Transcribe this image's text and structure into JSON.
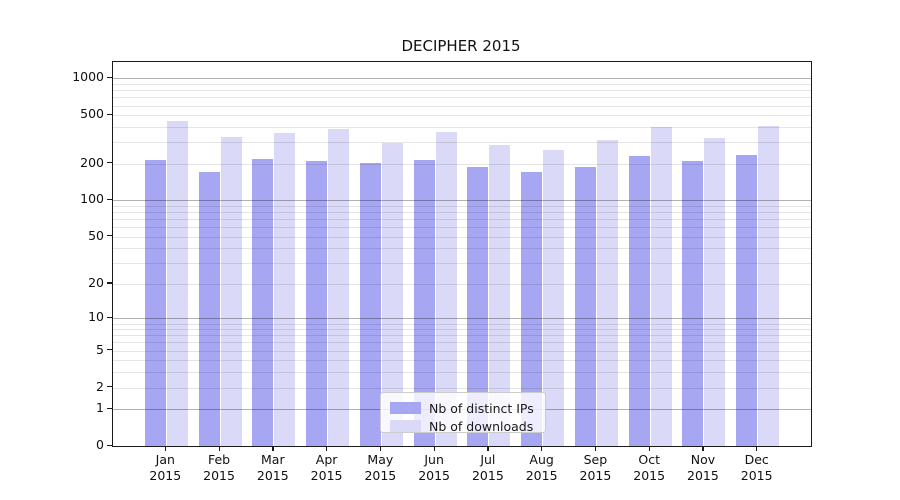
{
  "figure": {
    "title": "DECIPHER 2015"
  },
  "colors": {
    "background": "#ffffff",
    "bar_distinct_ips": "#a6a6f2",
    "bar_downloads": "#dadaf8",
    "axis": "#1a1a1a",
    "grid_major": "rgba(0,0,0,0.30)",
    "grid_minor": "rgba(0,0,0,0.10)",
    "legend_border": "#cccccc",
    "text": "#111111"
  },
  "chart_data": {
    "type": "bar",
    "title": "DECIPHER 2015",
    "xlabel": "",
    "ylabel": "",
    "y_scale": "log1p",
    "ylim": [
      0,
      1360
    ],
    "yticks": [
      0,
      1,
      2,
      5,
      10,
      20,
      50,
      100,
      200,
      500,
      1000
    ],
    "grid": "horizontal; dark lines at decades (1,10,100,1000), faint minor lines between",
    "categories": [
      "Jan 2015",
      "Feb 2015",
      "Mar 2015",
      "Apr 2015",
      "May 2015",
      "Jun 2015",
      "Jul 2015",
      "Aug 2015",
      "Sep 2015",
      "Oct 2015",
      "Nov 2015",
      "Dec 2015"
    ],
    "series": [
      {
        "name": "Nb of distinct IPs",
        "key": "distinct-ips",
        "color": "#a6a6f2",
        "values": [
          215,
          172,
          220,
          211,
          204,
          215,
          190,
          172,
          190,
          233,
          212,
          236
        ]
      },
      {
        "name": "Nb of downloads",
        "key": "downloads",
        "color": "#dadaf8",
        "values": [
          450,
          330,
          357,
          385,
          299,
          368,
          285,
          259,
          315,
          404,
          325,
          409
        ]
      }
    ],
    "legend": {
      "position": "inside, lower center",
      "entries": [
        "Nb of distinct IPs",
        "Nb of downloads"
      ]
    }
  }
}
